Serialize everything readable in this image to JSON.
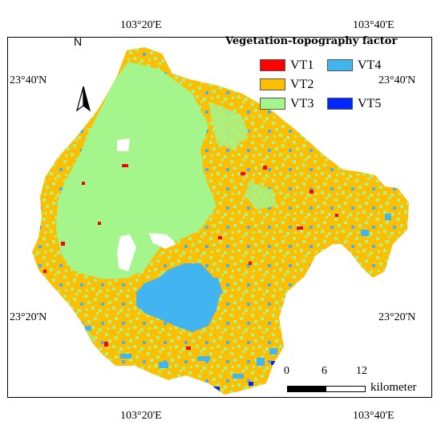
{
  "legend": {
    "title": "Vegetation-topography factor",
    "items": [
      {
        "label": "VT1",
        "color": "#ff0000"
      },
      {
        "label": "VT2",
        "color": "#ffbe00"
      },
      {
        "label": "VT3",
        "color": "#a3f58c"
      },
      {
        "label": "VT4",
        "color": "#42b4f0"
      },
      {
        "label": "VT5",
        "color": "#0026ff"
      }
    ]
  },
  "graticule": {
    "top_left": "103°20'E",
    "top_right": "103°40'E",
    "bottom_left": "103°20'E",
    "bottom_right": "103°40'E",
    "left_upper": "23°40'N",
    "left_lower": "23°20'N",
    "right_upper": "23°40'N",
    "right_lower": "23°20'N"
  },
  "north_arrow": {
    "label": "N"
  },
  "scale": {
    "ticks": [
      "0",
      "6",
      "12"
    ],
    "unit": "kilometer"
  }
}
